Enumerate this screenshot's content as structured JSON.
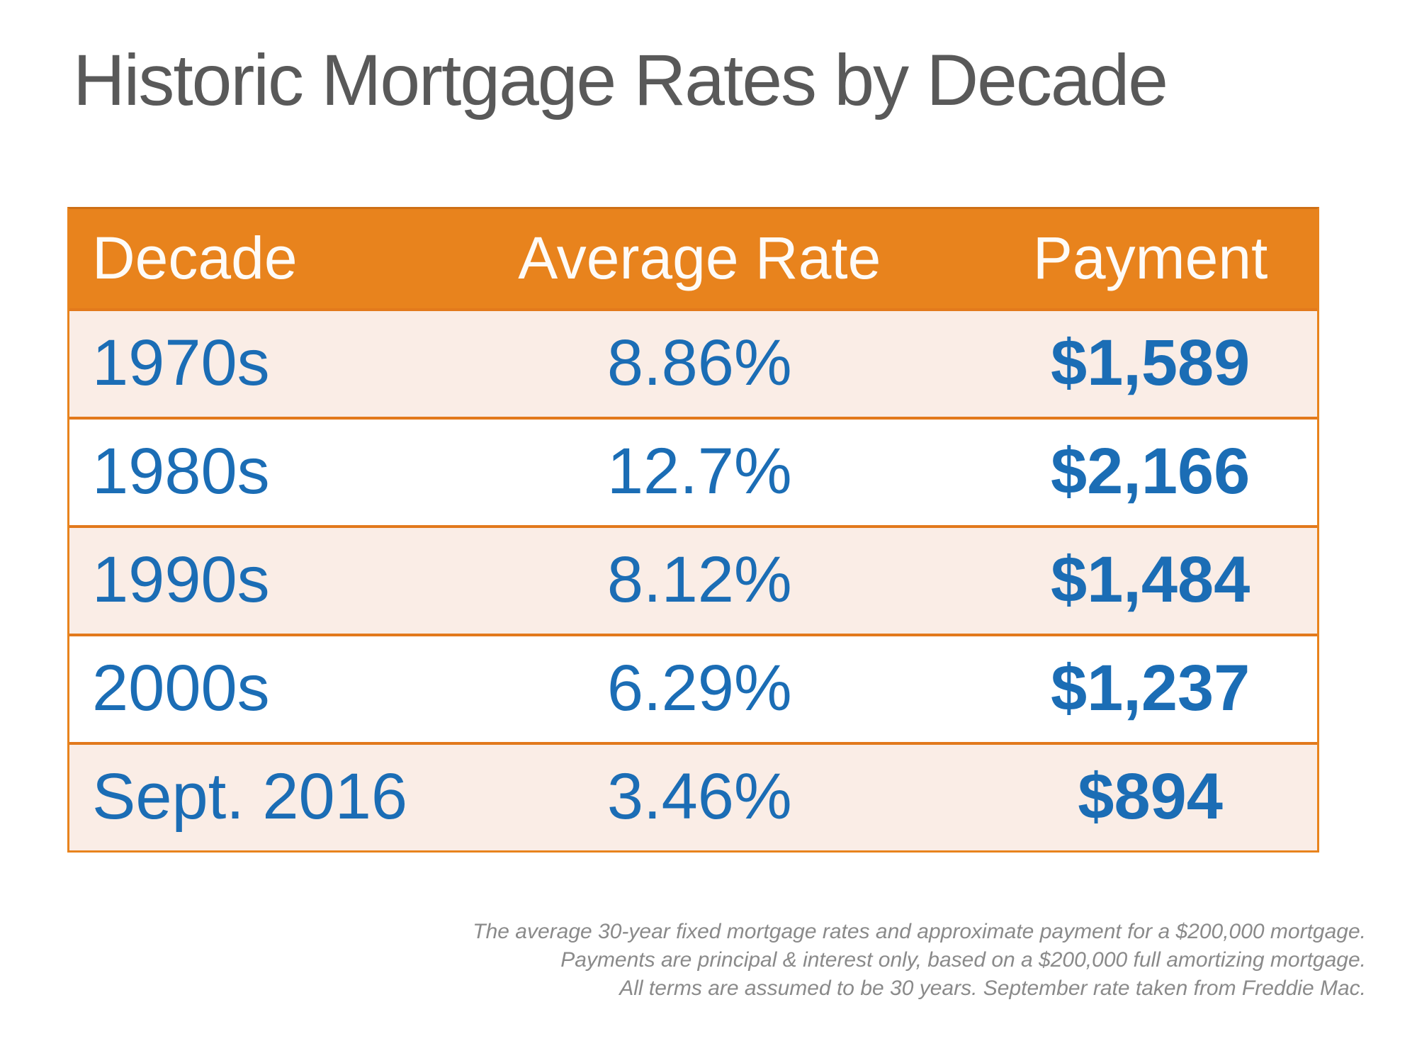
{
  "chart_data": {
    "type": "table",
    "title": "Historic Mortgage Rates by Decade",
    "columns": [
      "Decade",
      "Average Rate",
      "Payment"
    ],
    "rows": [
      [
        "1970s",
        "8.86%",
        "$1,589"
      ],
      [
        "1980s",
        "12.7%",
        "$2,166"
      ],
      [
        "1990s",
        "8.12%",
        "$1,484"
      ],
      [
        "2000s",
        "6.29%",
        "$1,237"
      ],
      [
        "Sept. 2016",
        "3.46%",
        "$894"
      ]
    ],
    "numeric": {
      "average_rate_percent": [
        8.86,
        12.7,
        8.12,
        6.29,
        3.46
      ],
      "payment_usd": [
        1589,
        2166,
        1484,
        1237,
        894
      ]
    },
    "legend_position": "none",
    "grid": "horizontal-row-borders"
  },
  "footnote": {
    "lines": [
      "The average 30-year fixed mortgage rates and approximate payment for a $200,000 mortgage.",
      "Payments are principal & interest only, based on a $200,000 full amortizing mortgage.",
      "All terms are assumed to be 30 years. September rate taken from Freddie Mac."
    ]
  },
  "colors": {
    "accent_orange": "#E8831D",
    "border_orange": "#E2791C",
    "header_top_border": "#CE6F15",
    "row_cream": "#FAEDE6",
    "value_blue": "#1B6DB5",
    "title_gray": "#595959",
    "footnote_gray": "#8A8A8A",
    "header_text": "#FEFBF7"
  }
}
